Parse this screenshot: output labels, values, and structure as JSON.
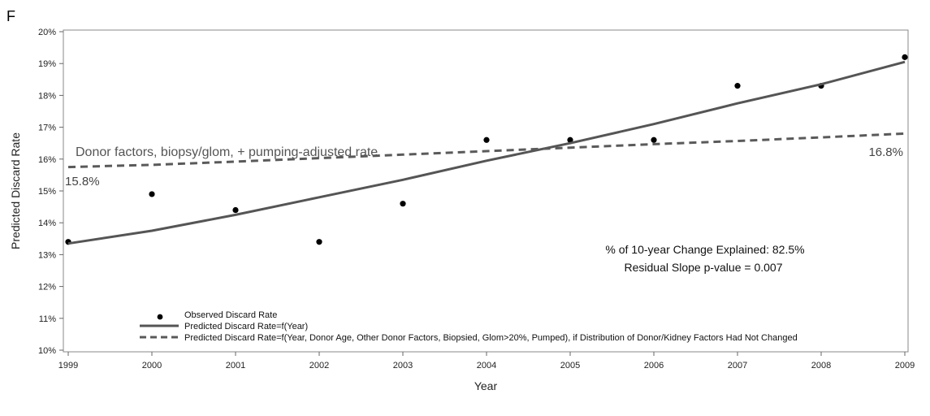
{
  "panel_label": "F",
  "chart_data": {
    "type": "line",
    "xlabel": "Year",
    "ylabel": "Predicted Discard Rate",
    "xlim": [
      1999,
      2009
    ],
    "ylim": [
      10,
      20
    ],
    "x_ticks": [
      "1999",
      "2000",
      "2001",
      "2002",
      "2003",
      "2004",
      "2005",
      "2006",
      "2007",
      "2008",
      "2009"
    ],
    "y_ticks": [
      "10%",
      "11%",
      "12%",
      "13%",
      "14%",
      "15%",
      "16%",
      "17%",
      "18%",
      "19%",
      "20%"
    ],
    "series": [
      {
        "name": "Observed Discard Rate",
        "style": "points",
        "x": [
          1999,
          2000,
          2001,
          2002,
          2003,
          2004,
          2005,
          2006,
          2007,
          2008,
          2009
        ],
        "y": [
          13.4,
          14.9,
          14.4,
          13.4,
          14.6,
          16.6,
          16.6,
          16.6,
          18.3,
          18.3,
          19.2
        ]
      },
      {
        "name": "Predicted Discard Rate=f(Year)",
        "style": "solid",
        "x": [
          1999,
          2000,
          2001,
          2002,
          2003,
          2004,
          2005,
          2006,
          2007,
          2008,
          2009
        ],
        "y": [
          13.35,
          13.75,
          14.25,
          14.8,
          15.35,
          15.95,
          16.5,
          17.1,
          17.75,
          18.35,
          19.05
        ]
      },
      {
        "name": "Predicted Discard Rate=f(Year, Donor Age, Other Donor Factors, Biopsied, Glom>20%, Pumped), if Distribution of Donor/Kidney Factors Had Not Changed",
        "style": "dashed",
        "x": [
          1999,
          2000,
          2001,
          2002,
          2003,
          2004,
          2005,
          2006,
          2007,
          2008,
          2009
        ],
        "y": [
          15.75,
          15.82,
          15.92,
          16.03,
          16.14,
          16.25,
          16.36,
          16.47,
          16.57,
          16.68,
          16.8
        ]
      }
    ],
    "annotations": {
      "dashed_label": "Donor factors, biopsy/glom, + pumping-adjusted rate",
      "start_value_label": "15.8%",
      "end_value_label": "16.8%",
      "explained_line1": "% of 10-year Change Explained: 82.5%",
      "explained_line2": "Residual Slope p-value = 0.007"
    },
    "legend_position": "bottom-left",
    "grid": false,
    "colors": {
      "points": "#000000",
      "solid": "#555555",
      "dashed": "#5a5a5a"
    }
  }
}
